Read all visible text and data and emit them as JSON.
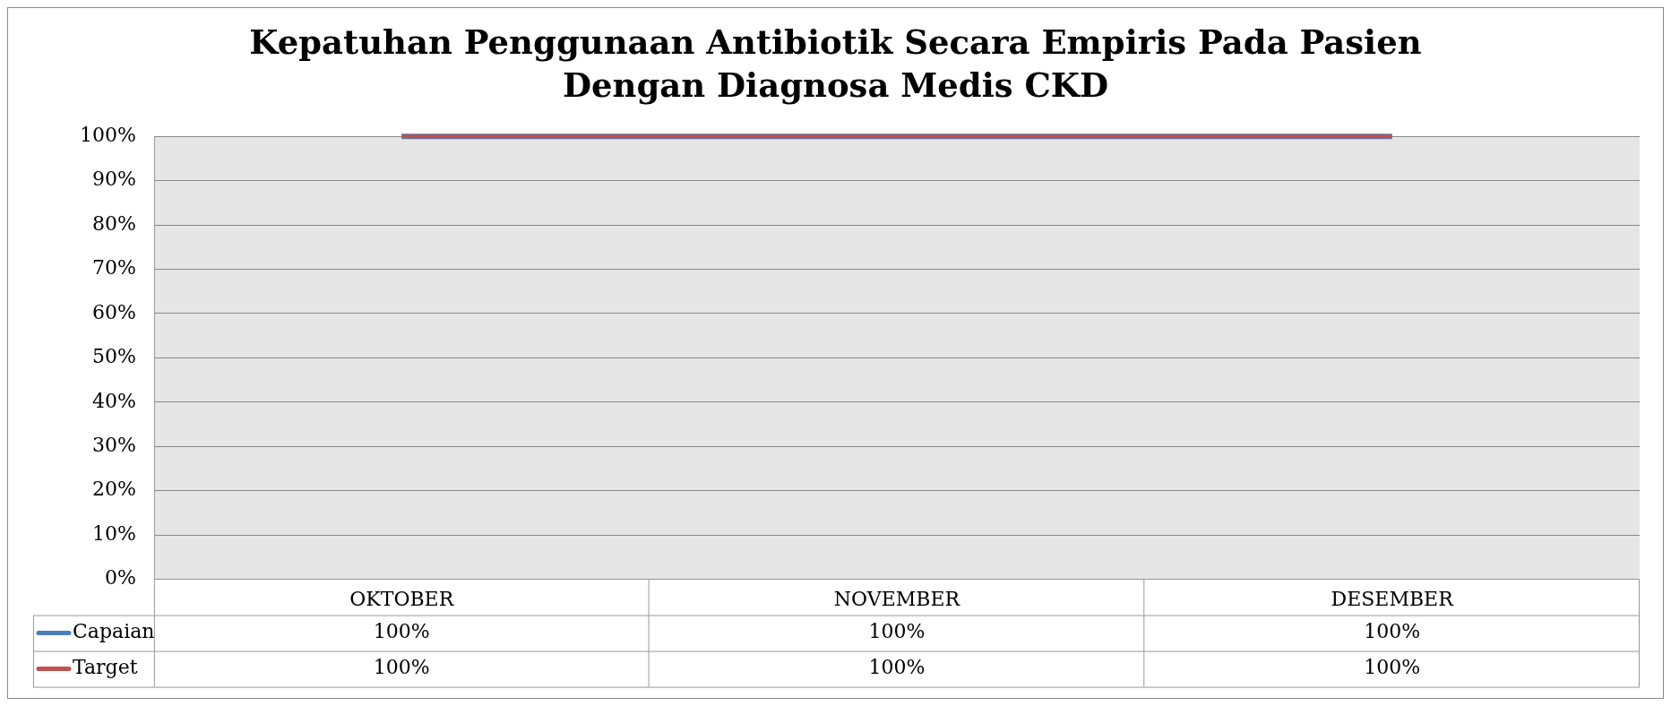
{
  "chart_data": {
    "type": "line",
    "title": "Kepatuhan Penggunaan Antibiotik Secara Empiris Pada Pasien Dengan Diagnosa Medis CKD",
    "categories": [
      "OKTOBER",
      "NOVEMBER",
      "DESEMBER"
    ],
    "series": [
      {
        "name": "Capaian",
        "color": "#4a7ebb",
        "values": [
          100,
          100,
          100
        ],
        "value_labels": [
          "100%",
          "100%",
          "100%"
        ]
      },
      {
        "name": "Target",
        "color": "#c0504d",
        "values": [
          100,
          100,
          100
        ],
        "value_labels": [
          "100%",
          "100%",
          "100%"
        ]
      }
    ],
    "ylim": [
      0,
      100
    ],
    "yticks": [
      {
        "value": 0,
        "label": "0%"
      },
      {
        "value": 10,
        "label": "10%"
      },
      {
        "value": 20,
        "label": "20%"
      },
      {
        "value": 30,
        "label": "30%"
      },
      {
        "value": 40,
        "label": "40%"
      },
      {
        "value": 50,
        "label": "50%"
      },
      {
        "value": 60,
        "label": "60%"
      },
      {
        "value": 70,
        "label": "70%"
      },
      {
        "value": 80,
        "label": "80%"
      },
      {
        "value": 90,
        "label": "90%"
      },
      {
        "value": 100,
        "label": "100%"
      }
    ],
    "grid": "y",
    "legend": "bottom",
    "marker": "none",
    "line_style": "solid"
  }
}
